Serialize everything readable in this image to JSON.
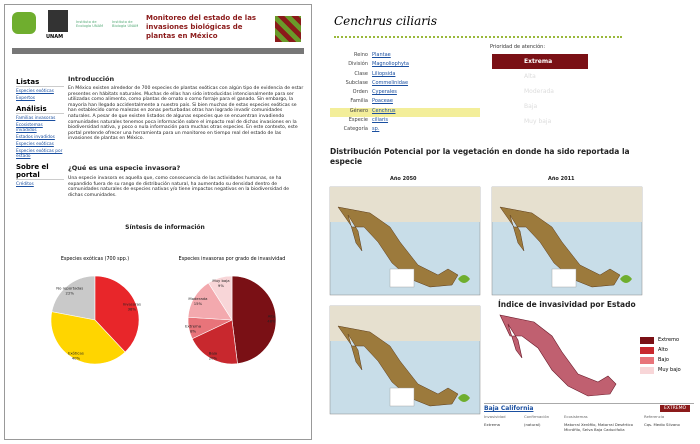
{
  "chart_data": [
    {
      "type": "pie",
      "title": "Especies exóticas (700 spp.)",
      "categories": [
        "No reportadas",
        "Invasoras",
        "Exóticas"
      ],
      "values": [
        22,
        38,
        40
      ],
      "value_labels": [
        "22%",
        "38%",
        "40%"
      ],
      "colors": [
        "#c9c9c9",
        "#e8262a",
        "#ffd500"
      ]
    },
    {
      "type": "pie",
      "title": "Especies invasoras por grado de invasividad",
      "categories": [
        "Alta",
        "Baja",
        "Extrema",
        "Moderada",
        "Muy baja"
      ],
      "values": [
        48,
        20,
        8,
        15,
        9
      ],
      "value_labels": [
        "48%",
        "20%",
        "8%",
        "15%",
        "9%"
      ],
      "colors": [
        "#7a1015",
        "#c8282e",
        "#e8747a",
        "#f3a9ae",
        "#f8d6d8"
      ]
    }
  ],
  "left": {
    "header": {
      "title": "Monitoreo del estado de las invasiones biológicas de plantas en México",
      "logos": [
        "UNAM",
        "Instituto de Ecología UNAM",
        "Instituto de Biología UNAM"
      ]
    },
    "sidebar": [
      {
        "title": "Listas",
        "links": [
          "Especies exóticas",
          "Expertos"
        ]
      },
      {
        "title": "Análisis",
        "links": [
          "Familias invasoras",
          "Ecosistemas invadidos",
          "Estados invadidos",
          "Especies exóticas",
          "Especies exóticas por estado"
        ]
      },
      {
        "title": "Sobre el portal",
        "links": [
          "Créditos"
        ]
      }
    ],
    "intro": {
      "title": "Introducción",
      "text": "En México existen alrededor de 700 especies de plantas exóticas con algún tipo de evidencia de estar presentes en hábitats naturales. Muchas de ellas han sido introducidas intencionalmente para ser utilizadas como alimento, como plantas de ornato o como forraje para el ganado. Sin embargo, la mayoría han llegado accidentalmente a nuestro país. Si bien muchas de estas especies exóticas se han establecido como malezas en zonas perturbadas otras han logrado invadir comunidades naturales. A pesar de que existen listados de algunas especies que se encuentran invadiendo comunidades naturales tenemos poca información sobre el impacto real de dichas invasiones en la biodiversidad nativa, y poco o nula información para muchas otras especies. En este contexto, este portal pretende ofrecer una herramienta para un monitoreo en tiempo real del estado de las invasiones de plantas en México."
    },
    "question": {
      "title": "¿Qué es una especie invasora?",
      "text": "Una especie invasora es aquella que, como consecuencia de las actividades humanas, se ha expandido fuera de su rango de distribución natural, ha aumentado su densidad dentro de comunidades naturales de especies nativas y/o tiene impactos negativos en la biodiversidad de dichas comunidades."
    },
    "synthesis": "Síntesis de información"
  },
  "right": {
    "species": "Cenchrus ciliaris",
    "taxonomy": [
      [
        "Reino",
        "Plantae"
      ],
      [
        "División",
        "Magnoliophyta"
      ],
      [
        "Clase",
        "Liliopsida"
      ],
      [
        "Subclase",
        "Commelinidae"
      ],
      [
        "Orden",
        "Cyperales"
      ],
      [
        "Familia",
        "Poaceae"
      ],
      [
        "Género",
        "Cenchrus"
      ],
      [
        "Especie",
        "ciliaris"
      ],
      [
        "Categoría",
        "sp."
      ]
    ],
    "priority": {
      "title": "Prioridad de atención:",
      "levels": [
        "Extrema",
        "Alta",
        "Moderada",
        "Baja",
        "Muy baja"
      ]
    },
    "distribution": {
      "title": "Distribución Potencial por la vegetación en donde ha sido reportada la especie",
      "maps": [
        "Año 2050",
        "Año 2011"
      ]
    },
    "index": {
      "title": "Índice de invasividad por Estado",
      "legend": [
        "Extremo",
        "Alto",
        "Bajo",
        "Muy bajo"
      ]
    },
    "table": {
      "state": "Baja California",
      "rank": "EXTREMO",
      "headers": [
        "Invasividad",
        "Confirmación",
        "Ecosistemas",
        "Referencia"
      ],
      "row": [
        "Extrema",
        "(natural)",
        "Matorral Xerófilo, Matorral Desértico Micrófilo, Selva Baja Caducifolia",
        "Cqs. Medio Silvano"
      ]
    }
  }
}
